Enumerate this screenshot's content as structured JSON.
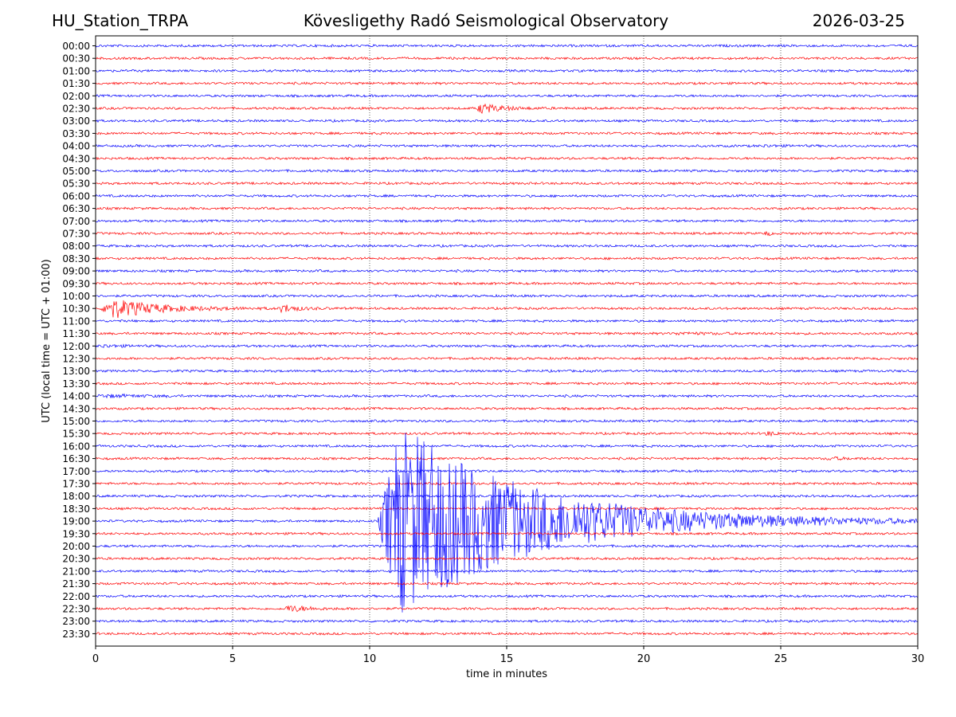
{
  "header": {
    "station": "HU_Station_TRPA",
    "observatory": "Kövesligethy Radó Seismological Observatory",
    "date": "2026-03-25"
  },
  "chart_data": {
    "type": "line",
    "title": "Kövesligethy Radó Seismological Observatory",
    "xlabel": "time in minutes",
    "ylabel": "UTC (local time = UTC + 01:00)",
    "xlim": [
      0,
      30
    ],
    "xticks": [
      0,
      5,
      10,
      15,
      20,
      25,
      30
    ],
    "grid": "vertical dotted lines at x ticks",
    "trace_colors": [
      "#0000ff",
      "#ff0000"
    ],
    "rows": [
      "00:00",
      "00:30",
      "01:00",
      "01:30",
      "02:00",
      "02:30",
      "03:00",
      "03:30",
      "04:00",
      "04:30",
      "05:00",
      "05:30",
      "06:00",
      "06:30",
      "07:00",
      "07:30",
      "08:00",
      "08:30",
      "09:00",
      "09:30",
      "10:00",
      "10:30",
      "11:00",
      "11:30",
      "12:00",
      "12:30",
      "13:00",
      "13:30",
      "14:00",
      "14:30",
      "15:00",
      "15:30",
      "16:00",
      "16:30",
      "17:00",
      "17:30",
      "18:00",
      "18:30",
      "19:00",
      "19:30",
      "20:00",
      "20:30",
      "21:00",
      "21:30",
      "22:00",
      "22:30",
      "23:00",
      "23:30"
    ],
    "events": [
      {
        "row": "02:30",
        "start_min": 13.9,
        "duration_min": 1.6,
        "peak_amp": 0.9
      },
      {
        "row": "04:00",
        "start_min": 24.3,
        "duration_min": 1.0,
        "peak_amp": 0.15
      },
      {
        "row": "07:30",
        "start_min": 24.4,
        "duration_min": 0.4,
        "peak_amp": 0.4
      },
      {
        "row": "10:30",
        "start_min": 0.2,
        "duration_min": 3.5,
        "peak_amp": 1.8
      },
      {
        "row": "10:30",
        "start_min": 6.7,
        "duration_min": 1.0,
        "peak_amp": 0.8
      },
      {
        "row": "11:30",
        "start_min": 21.0,
        "duration_min": 3.0,
        "peak_amp": 0.15
      },
      {
        "row": "12:00",
        "start_min": 0.1,
        "duration_min": 1.5,
        "peak_amp": 0.2
      },
      {
        "row": "14:00",
        "start_min": 0.0,
        "duration_min": 3.5,
        "peak_amp": 0.2
      },
      {
        "row": "15:30",
        "start_min": 24.4,
        "duration_min": 0.7,
        "peak_amp": 0.4
      },
      {
        "row": "16:30",
        "start_min": 26.6,
        "duration_min": 1.5,
        "peak_amp": 0.2
      },
      {
        "row": "19:00",
        "start_min": 10.3,
        "duration_min": 10.0,
        "peak_amp": 17.0
      },
      {
        "row": "22:30",
        "start_min": 6.9,
        "duration_min": 1.5,
        "peak_amp": 0.6
      }
    ]
  }
}
